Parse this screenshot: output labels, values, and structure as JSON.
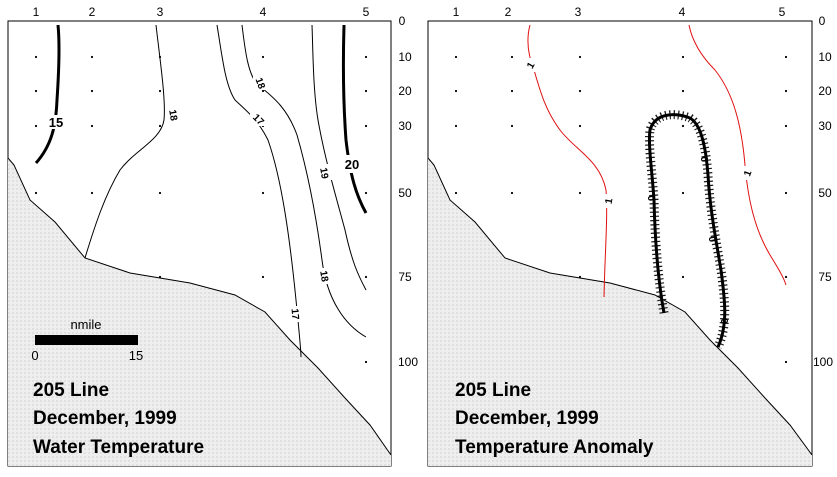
{
  "colors": {
    "ink": "#000000",
    "anomaly_positive_line": "#e01010",
    "land_fill": "#eeeeee",
    "background": "#ffffff"
  },
  "panels": [
    {
      "stations": [
        "1",
        "2",
        "3",
        "4",
        "5"
      ],
      "depths": [
        "0",
        "10",
        "20",
        "30",
        "50",
        "75",
        "100"
      ],
      "title_lines": [
        "205 Line",
        "December, 1999",
        "Water Temperature"
      ],
      "contour_labels": [
        "15",
        "18",
        "18",
        "17",
        "19",
        "20",
        "18",
        "17"
      ],
      "scale_bar": {
        "unit": "nmile",
        "min": "0",
        "max": "15"
      }
    },
    {
      "stations": [
        "1",
        "2",
        "3",
        "4",
        "5"
      ],
      "depths": [
        "0",
        "10",
        "20",
        "30",
        "50",
        "75",
        "100"
      ],
      "title_lines": [
        "205 Line",
        "December, 1999",
        "Temperature Anomaly"
      ],
      "contour_labels": [
        "1",
        "1",
        "1",
        "0",
        "0",
        "0",
        "0"
      ]
    }
  ]
}
